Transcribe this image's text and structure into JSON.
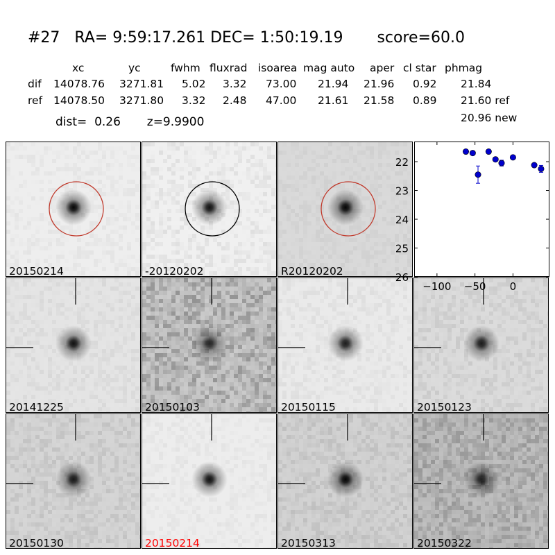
{
  "header": {
    "title": "#27   RA= 9:59:17.261 DEC= 1:50:19.19       score=60.0",
    "columns": [
      "xc",
      "yc",
      "fwhm",
      "fluxrad",
      "isoarea",
      "mag auto",
      "aper",
      "cl star",
      "phmag"
    ],
    "dif_row": [
      "dif",
      "14078.76",
      "3271.81",
      "5.02",
      "3.32",
      "73.00",
      "21.94",
      "21.96",
      "0.92",
      "21.84"
    ],
    "ref_row": [
      "ref",
      "14078.50",
      "3271.80",
      "3.32",
      "2.48",
      "47.00",
      "21.61",
      "21.58",
      "0.89",
      "21.60 ref"
    ],
    "new_mag": "20.96 new",
    "dist": "dist=  0.26       z=9.9900"
  },
  "panels": [
    {
      "label": "20150214",
      "bg": "#eeeeee",
      "noise": 0.04,
      "star": 1.0,
      "circle": "#c0392b",
      "ticks": false,
      "label_color": "#000000"
    },
    {
      "label": "-20120202",
      "bg": "#f0f0f0",
      "noise": 0.07,
      "star": 0.95,
      "circle": "#000000",
      "ticks": false,
      "label_color": "#000000"
    },
    {
      "label": "R20120202",
      "bg": "#d9d9d9",
      "noise": 0.04,
      "star": 1.0,
      "circle": "#c0392b",
      "ticks": false,
      "label_color": "#000000"
    },
    {
      "label": "20141225",
      "bg": "#e4e4e4",
      "noise": 0.05,
      "star": 0.95,
      "circle": null,
      "ticks": true,
      "label_color": "#000000"
    },
    {
      "label": "20150103",
      "bg": "#bdbdbd",
      "noise": 0.22,
      "star": 0.8,
      "circle": null,
      "ticks": true,
      "label_color": "#000000"
    },
    {
      "label": "20150115",
      "bg": "#eaeaea",
      "noise": 0.05,
      "star": 0.9,
      "circle": null,
      "ticks": true,
      "label_color": "#000000"
    },
    {
      "label": "20150123",
      "bg": "#dadada",
      "noise": 0.07,
      "star": 0.9,
      "circle": null,
      "ticks": true,
      "label_color": "#000000"
    },
    {
      "label": "20150130",
      "bg": "#d3d3d3",
      "noise": 0.08,
      "star": 0.9,
      "circle": null,
      "ticks": true,
      "label_color": "#000000"
    },
    {
      "label": "20150214",
      "bg": "#ededed",
      "noise": 0.04,
      "star": 0.95,
      "circle": null,
      "ticks": true,
      "label_color": "#ff0000"
    },
    {
      "label": "20150313",
      "bg": "#d0d0d0",
      "noise": 0.08,
      "star": 1.0,
      "circle": null,
      "ticks": true,
      "label_color": "#000000"
    },
    {
      "label": "20150322",
      "bg": "#b5b5b5",
      "noise": 0.16,
      "star": 0.85,
      "circle": null,
      "ticks": true,
      "label_color": "#000000"
    }
  ],
  "chart_data": {
    "type": "scatter",
    "xlim": [
      -130,
      48
    ],
    "ylim": [
      26,
      21.3
    ],
    "xticks": [
      -100,
      -50,
      0
    ],
    "yticks": [
      22,
      23,
      24,
      25,
      26
    ],
    "marker_color": "#0000cc",
    "points": [
      {
        "x": -62,
        "y": 21.65,
        "err": 0.0
      },
      {
        "x": -53,
        "y": 21.7,
        "err": 0.0
      },
      {
        "x": -46,
        "y": 22.45,
        "err": 0.3
      },
      {
        "x": -32,
        "y": 21.65,
        "err": 0.0
      },
      {
        "x": -23,
        "y": 21.92,
        "err": 0.06
      },
      {
        "x": -15,
        "y": 22.05,
        "err": 0.1
      },
      {
        "x": 0,
        "y": 21.85,
        "err": 0.0
      },
      {
        "x": 28,
        "y": 22.12,
        "err": 0.06
      },
      {
        "x": 37,
        "y": 22.25,
        "err": 0.12
      }
    ]
  }
}
